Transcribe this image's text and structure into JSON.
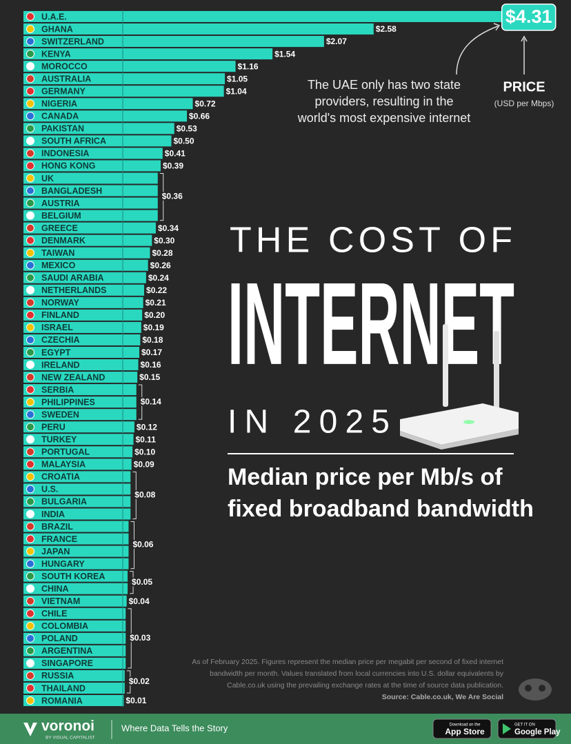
{
  "chart_data": {
    "type": "bar",
    "orientation": "horizontal",
    "color": "#2ad8c0",
    "title": [
      "THE COST OF",
      "INTERNET",
      "IN 2025"
    ],
    "subtitle": [
      "Median price per Mb/s of",
      "fixed broadband bandwidth"
    ],
    "value_axis_label": "PRICE",
    "value_axis_unit": "(USD per Mbps)",
    "annotation": [
      "The UAE only has two state",
      "providers, resulting in the",
      "world's most expensive internet"
    ],
    "note": [
      "As of February 2025. Figures represent the median price per megabit per second of fixed internet",
      "bandwidth per month. Values translated from local currencies into U.S. dollar equivalents by",
      "Cable.co.uk using the prevailing exchange rates at the time of source data publication."
    ],
    "source": "Source: Cable.co.uk, We Are Social",
    "categories": [
      "U.A.E.",
      "GHANA",
      "SWITZERLAND",
      "KENYA",
      "MOROCCO",
      "AUSTRALIA",
      "GERMANY",
      "NIGERIA",
      "CANADA",
      "PAKISTAN",
      "SOUTH AFRICA",
      "INDONESIA",
      "HONG KONG",
      "UK",
      "BANGLADESH",
      "AUSTRIA",
      "BELGIUM",
      "GREECE",
      "DENMARK",
      "TAIWAN",
      "MEXICO",
      "SAUDI ARABIA",
      "NETHERLANDS",
      "NORWAY",
      "FINLAND",
      "ISRAEL",
      "CZECHIA",
      "EGYPT",
      "IRELAND",
      "NEW ZEALAND",
      "SERBIA",
      "PHILIPPINES",
      "SWEDEN",
      "PERU",
      "TURKEY",
      "PORTUGAL",
      "MALAYSIA",
      "CROATIA",
      "U.S.",
      "BULGARIA",
      "INDIA",
      "BRAZIL",
      "FRANCE",
      "JAPAN",
      "HUNGARY",
      "SOUTH KOREA",
      "CHINA",
      "VIETNAM",
      "CHILE",
      "COLOMBIA",
      "POLAND",
      "ARGENTINA",
      "SINGAPORE",
      "RUSSIA",
      "THAILAND",
      "ROMANIA"
    ],
    "values": [
      4.31,
      2.58,
      2.07,
      1.54,
      1.16,
      1.05,
      1.04,
      0.72,
      0.66,
      0.53,
      0.5,
      0.41,
      0.39,
      0.36,
      0.36,
      0.36,
      0.36,
      0.34,
      0.3,
      0.28,
      0.26,
      0.24,
      0.22,
      0.21,
      0.2,
      0.19,
      0.18,
      0.17,
      0.16,
      0.15,
      0.14,
      0.14,
      0.14,
      0.12,
      0.11,
      0.1,
      0.09,
      0.08,
      0.08,
      0.08,
      0.08,
      0.06,
      0.06,
      0.06,
      0.06,
      0.05,
      0.05,
      0.04,
      0.03,
      0.03,
      0.03,
      0.03,
      0.03,
      0.02,
      0.02,
      0.01
    ],
    "value_labels": [
      "$4.31",
      "$2.58",
      "$2.07",
      "$1.54",
      "$1.16",
      "$1.05",
      "$1.04",
      "$0.72",
      "$0.66",
      "$0.53",
      "$0.50",
      "$0.41",
      "$0.39",
      "$0.36",
      null,
      null,
      null,
      "$0.34",
      "$0.30",
      "$0.28",
      "$0.26",
      "$0.24",
      "$0.22",
      "$0.21",
      "$0.20",
      "$0.19",
      "$0.18",
      "$0.17",
      "$0.16",
      "$0.15",
      "$0.14",
      null,
      null,
      "$0.12",
      "$0.11",
      "$0.10",
      "$0.09",
      "$0.08",
      null,
      null,
      null,
      "$0.06",
      null,
      null,
      null,
      "$0.05",
      null,
      "$0.04",
      "$0.03",
      null,
      null,
      null,
      null,
      "$0.02",
      null,
      "$0.01"
    ]
  },
  "footer": {
    "brand": "voronoi",
    "brand_sub": "BY VISUAL CAPITALIST",
    "tagline": "Where Data Tells the Story",
    "app_store": [
      "Download on the",
      "App Store"
    ],
    "google_play": [
      "GET IT ON",
      "Google Play"
    ]
  }
}
